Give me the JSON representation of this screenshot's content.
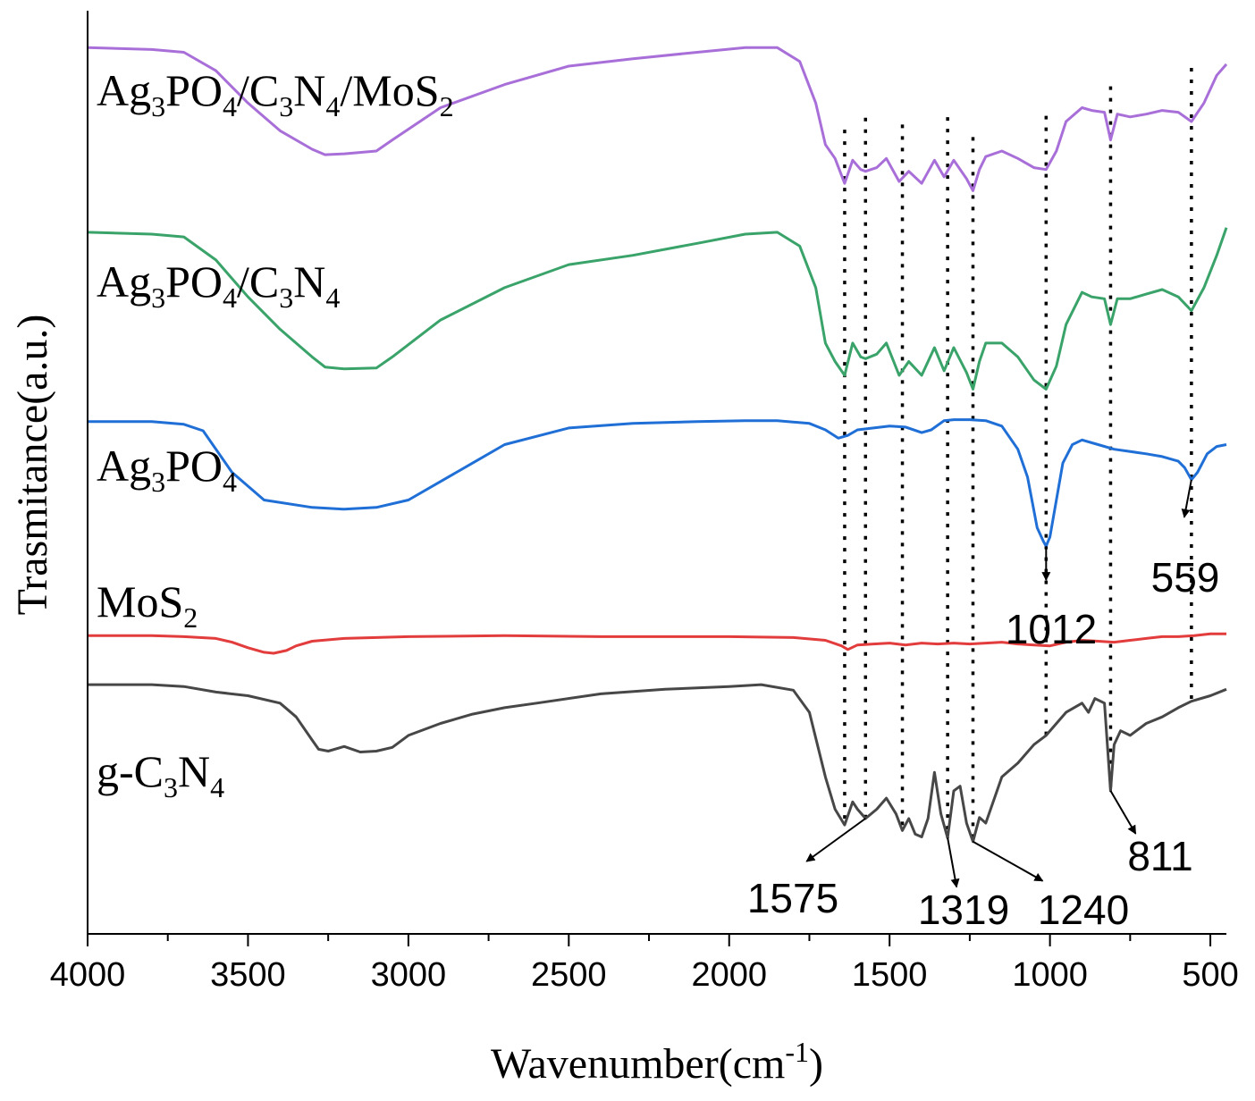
{
  "chart_data": {
    "type": "line",
    "title": "",
    "xlabel_main": "Wavenumber(cm",
    "xlabel_sup": "-1",
    "xlabel_close": ")",
    "ylabel": "Trasmitance(a.u.)",
    "xlim": [
      4000,
      450
    ],
    "x_reversed": true,
    "ylim": [
      0,
      1
    ],
    "yticks_shown": false,
    "grid": false,
    "xticks": [
      4000,
      3500,
      3000,
      2500,
      2000,
      1500,
      1000,
      500
    ],
    "xtick_labels": [
      "4000",
      "3500",
      "3000",
      "2500",
      "2000",
      "1500",
      "1000",
      "500"
    ],
    "legend_location": "inline labels at left",
    "series": [
      {
        "id": "ag3po4_c3n4_mos2",
        "label_parts": [
          "Ag",
          "3",
          "PO",
          "4",
          "/C",
          "3",
          "N",
          "4",
          "/MoS",
          "2"
        ],
        "color": "#a96fd9",
        "points": [
          [
            4000,
            0.96
          ],
          [
            3800,
            0.958
          ],
          [
            3700,
            0.955
          ],
          [
            3600,
            0.935
          ],
          [
            3500,
            0.9
          ],
          [
            3400,
            0.87
          ],
          [
            3300,
            0.85
          ],
          [
            3260,
            0.844
          ],
          [
            3200,
            0.845
          ],
          [
            3100,
            0.848
          ],
          [
            3050,
            0.86
          ],
          [
            2900,
            0.895
          ],
          [
            2700,
            0.92
          ],
          [
            2500,
            0.94
          ],
          [
            2300,
            0.948
          ],
          [
            2100,
            0.955
          ],
          [
            1950,
            0.96
          ],
          [
            1850,
            0.96
          ],
          [
            1780,
            0.945
          ],
          [
            1730,
            0.9
          ],
          [
            1700,
            0.855
          ],
          [
            1670,
            0.84
          ],
          [
            1640,
            0.813
          ],
          [
            1615,
            0.838
          ],
          [
            1590,
            0.828
          ],
          [
            1575,
            0.826
          ],
          [
            1540,
            0.83
          ],
          [
            1510,
            0.84
          ],
          [
            1470,
            0.815
          ],
          [
            1440,
            0.826
          ],
          [
            1400,
            0.813
          ],
          [
            1360,
            0.838
          ],
          [
            1330,
            0.82
          ],
          [
            1300,
            0.838
          ],
          [
            1260,
            0.818
          ],
          [
            1240,
            0.805
          ],
          [
            1220,
            0.828
          ],
          [
            1200,
            0.842
          ],
          [
            1150,
            0.848
          ],
          [
            1100,
            0.84
          ],
          [
            1050,
            0.83
          ],
          [
            1012,
            0.828
          ],
          [
            980,
            0.848
          ],
          [
            950,
            0.88
          ],
          [
            900,
            0.895
          ],
          [
            870,
            0.892
          ],
          [
            830,
            0.89
          ],
          [
            811,
            0.86
          ],
          [
            790,
            0.888
          ],
          [
            750,
            0.885
          ],
          [
            700,
            0.888
          ],
          [
            650,
            0.892
          ],
          [
            600,
            0.89
          ],
          [
            559,
            0.88
          ],
          [
            520,
            0.9
          ],
          [
            480,
            0.93
          ],
          [
            450,
            0.942
          ]
        ]
      },
      {
        "id": "ag3po4_c3n4",
        "label_parts": [
          "Ag",
          "3",
          "PO",
          "4",
          "/C",
          "3",
          "N",
          "4"
        ],
        "color": "#3aa36a",
        "points": [
          [
            4000,
            0.76
          ],
          [
            3800,
            0.758
          ],
          [
            3700,
            0.755
          ],
          [
            3600,
            0.73
          ],
          [
            3500,
            0.69
          ],
          [
            3400,
            0.655
          ],
          [
            3300,
            0.625
          ],
          [
            3260,
            0.614
          ],
          [
            3200,
            0.612
          ],
          [
            3100,
            0.613
          ],
          [
            3050,
            0.625
          ],
          [
            2900,
            0.665
          ],
          [
            2700,
            0.7
          ],
          [
            2500,
            0.725
          ],
          [
            2300,
            0.735
          ],
          [
            2100,
            0.748
          ],
          [
            1950,
            0.758
          ],
          [
            1850,
            0.76
          ],
          [
            1780,
            0.745
          ],
          [
            1730,
            0.7
          ],
          [
            1700,
            0.64
          ],
          [
            1670,
            0.62
          ],
          [
            1640,
            0.605
          ],
          [
            1615,
            0.64
          ],
          [
            1590,
            0.625
          ],
          [
            1575,
            0.623
          ],
          [
            1540,
            0.628
          ],
          [
            1510,
            0.64
          ],
          [
            1470,
            0.605
          ],
          [
            1440,
            0.62
          ],
          [
            1400,
            0.605
          ],
          [
            1360,
            0.635
          ],
          [
            1330,
            0.61
          ],
          [
            1300,
            0.635
          ],
          [
            1260,
            0.608
          ],
          [
            1240,
            0.59
          ],
          [
            1220,
            0.62
          ],
          [
            1200,
            0.64
          ],
          [
            1150,
            0.64
          ],
          [
            1100,
            0.625
          ],
          [
            1050,
            0.6
          ],
          [
            1012,
            0.59
          ],
          [
            980,
            0.615
          ],
          [
            950,
            0.66
          ],
          [
            900,
            0.695
          ],
          [
            870,
            0.69
          ],
          [
            830,
            0.688
          ],
          [
            811,
            0.66
          ],
          [
            790,
            0.688
          ],
          [
            750,
            0.688
          ],
          [
            700,
            0.693
          ],
          [
            650,
            0.698
          ],
          [
            600,
            0.69
          ],
          [
            559,
            0.675
          ],
          [
            520,
            0.7
          ],
          [
            480,
            0.735
          ],
          [
            450,
            0.765
          ]
        ]
      },
      {
        "id": "ag3po4",
        "label_parts": [
          "Ag",
          "3",
          "PO",
          "4"
        ],
        "color": "#1f6fd6",
        "points": [
          [
            4000,
            0.555
          ],
          [
            3800,
            0.555
          ],
          [
            3700,
            0.552
          ],
          [
            3640,
            0.545
          ],
          [
            3550,
            0.5
          ],
          [
            3450,
            0.47
          ],
          [
            3300,
            0.462
          ],
          [
            3200,
            0.46
          ],
          [
            3100,
            0.462
          ],
          [
            3000,
            0.47
          ],
          [
            2900,
            0.49
          ],
          [
            2800,
            0.51
          ],
          [
            2700,
            0.53
          ],
          [
            2500,
            0.548
          ],
          [
            2300,
            0.553
          ],
          [
            2100,
            0.555
          ],
          [
            1950,
            0.556
          ],
          [
            1850,
            0.556
          ],
          [
            1750,
            0.553
          ],
          [
            1700,
            0.546
          ],
          [
            1660,
            0.537
          ],
          [
            1630,
            0.54
          ],
          [
            1600,
            0.546
          ],
          [
            1550,
            0.548
          ],
          [
            1500,
            0.55
          ],
          [
            1450,
            0.549
          ],
          [
            1400,
            0.543
          ],
          [
            1370,
            0.546
          ],
          [
            1330,
            0.556
          ],
          [
            1300,
            0.557
          ],
          [
            1250,
            0.557
          ],
          [
            1200,
            0.556
          ],
          [
            1150,
            0.55
          ],
          [
            1100,
            0.525
          ],
          [
            1070,
            0.495
          ],
          [
            1040,
            0.44
          ],
          [
            1020,
            0.425
          ],
          [
            1012,
            0.42
          ],
          [
            1000,
            0.43
          ],
          [
            980,
            0.47
          ],
          [
            960,
            0.51
          ],
          [
            930,
            0.53
          ],
          [
            900,
            0.535
          ],
          [
            850,
            0.53
          ],
          [
            800,
            0.525
          ],
          [
            700,
            0.52
          ],
          [
            650,
            0.517
          ],
          [
            600,
            0.512
          ],
          [
            580,
            0.505
          ],
          [
            559,
            0.492
          ],
          [
            540,
            0.5
          ],
          [
            510,
            0.52
          ],
          [
            480,
            0.528
          ],
          [
            450,
            0.53
          ]
        ]
      },
      {
        "id": "mos2",
        "label_parts": [
          "MoS",
          "2"
        ],
        "color": "#e23c3c",
        "points": [
          [
            4000,
            0.323
          ],
          [
            3800,
            0.323
          ],
          [
            3700,
            0.322
          ],
          [
            3600,
            0.32
          ],
          [
            3550,
            0.316
          ],
          [
            3500,
            0.31
          ],
          [
            3450,
            0.305
          ],
          [
            3420,
            0.304
          ],
          [
            3380,
            0.307
          ],
          [
            3350,
            0.312
          ],
          [
            3300,
            0.317
          ],
          [
            3200,
            0.32
          ],
          [
            3000,
            0.322
          ],
          [
            2700,
            0.323
          ],
          [
            2400,
            0.322
          ],
          [
            2200,
            0.322
          ],
          [
            2000,
            0.322
          ],
          [
            1800,
            0.321
          ],
          [
            1700,
            0.318
          ],
          [
            1650,
            0.312
          ],
          [
            1630,
            0.308
          ],
          [
            1600,
            0.313
          ],
          [
            1550,
            0.314
          ],
          [
            1500,
            0.315
          ],
          [
            1450,
            0.313
          ],
          [
            1400,
            0.315
          ],
          [
            1350,
            0.314
          ],
          [
            1300,
            0.315
          ],
          [
            1250,
            0.314
          ],
          [
            1200,
            0.315
          ],
          [
            1150,
            0.316
          ],
          [
            1100,
            0.314
          ],
          [
            1050,
            0.313
          ],
          [
            1000,
            0.312
          ],
          [
            950,
            0.316
          ],
          [
            900,
            0.318
          ],
          [
            850,
            0.317
          ],
          [
            800,
            0.316
          ],
          [
            750,
            0.318
          ],
          [
            700,
            0.32
          ],
          [
            650,
            0.322
          ],
          [
            600,
            0.322
          ],
          [
            550,
            0.323
          ],
          [
            500,
            0.325
          ],
          [
            450,
            0.325
          ]
        ]
      },
      {
        "id": "g_c3n4",
        "label_parts": [
          "g-C",
          "3",
          "N",
          "4"
        ],
        "color": "#474747",
        "points": [
          [
            4000,
            0.27
          ],
          [
            3800,
            0.27
          ],
          [
            3700,
            0.268
          ],
          [
            3600,
            0.262
          ],
          [
            3500,
            0.258
          ],
          [
            3400,
            0.25
          ],
          [
            3350,
            0.235
          ],
          [
            3300,
            0.21
          ],
          [
            3280,
            0.2
          ],
          [
            3250,
            0.198
          ],
          [
            3200,
            0.203
          ],
          [
            3150,
            0.197
          ],
          [
            3100,
            0.198
          ],
          [
            3050,
            0.202
          ],
          [
            3000,
            0.215
          ],
          [
            2900,
            0.228
          ],
          [
            2800,
            0.238
          ],
          [
            2700,
            0.245
          ],
          [
            2600,
            0.25
          ],
          [
            2400,
            0.26
          ],
          [
            2200,
            0.265
          ],
          [
            2000,
            0.268
          ],
          [
            1900,
            0.27
          ],
          [
            1800,
            0.264
          ],
          [
            1750,
            0.24
          ],
          [
            1700,
            0.17
          ],
          [
            1670,
            0.135
          ],
          [
            1640,
            0.118
          ],
          [
            1615,
            0.143
          ],
          [
            1600,
            0.135
          ],
          [
            1575,
            0.125
          ],
          [
            1540,
            0.135
          ],
          [
            1510,
            0.147
          ],
          [
            1480,
            0.13
          ],
          [
            1460,
            0.112
          ],
          [
            1440,
            0.125
          ],
          [
            1420,
            0.108
          ],
          [
            1400,
            0.105
          ],
          [
            1380,
            0.125
          ],
          [
            1360,
            0.175
          ],
          [
            1340,
            0.13
          ],
          [
            1319,
            0.104
          ],
          [
            1300,
            0.155
          ],
          [
            1280,
            0.16
          ],
          [
            1260,
            0.12
          ],
          [
            1240,
            0.1
          ],
          [
            1220,
            0.126
          ],
          [
            1200,
            0.12
          ],
          [
            1180,
            0.14
          ],
          [
            1150,
            0.17
          ],
          [
            1100,
            0.185
          ],
          [
            1050,
            0.205
          ],
          [
            1012,
            0.215
          ],
          [
            950,
            0.24
          ],
          [
            900,
            0.25
          ],
          [
            880,
            0.24
          ],
          [
            860,
            0.255
          ],
          [
            830,
            0.25
          ],
          [
            811,
            0.155
          ],
          [
            800,
            0.205
          ],
          [
            780,
            0.22
          ],
          [
            750,
            0.215
          ],
          [
            700,
            0.228
          ],
          [
            650,
            0.235
          ],
          [
            600,
            0.245
          ],
          [
            559,
            0.252
          ],
          [
            500,
            0.258
          ],
          [
            450,
            0.265
          ]
        ]
      }
    ],
    "reference_lines": [
      1640,
      1575,
      1460,
      1319,
      1240,
      1012,
      811,
      559
    ],
    "annotations": [
      {
        "id": "ann-1012",
        "text": "1012",
        "x": 1012,
        "series": "ag3po4"
      },
      {
        "id": "ann-559",
        "text": "559",
        "x": 559,
        "series": "ag3po4"
      },
      {
        "id": "ann-1575",
        "text": "1575",
        "x": 1575,
        "series": "g_c3n4"
      },
      {
        "id": "ann-1319",
        "text": "1319",
        "x": 1319,
        "series": "g_c3n4"
      },
      {
        "id": "ann-1240",
        "text": "1240",
        "x": 1240,
        "series": "g_c3n4"
      },
      {
        "id": "ann-811",
        "text": "811",
        "x": 811,
        "series": "g_c3n4"
      }
    ]
  }
}
